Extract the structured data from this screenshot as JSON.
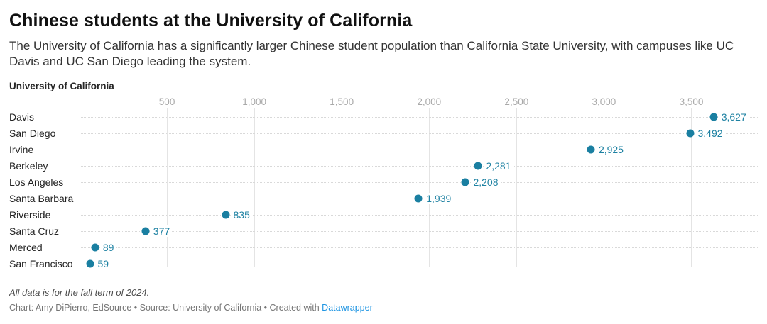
{
  "header": {
    "title": "Chinese students at the University of California",
    "subtitle": "The University of California has a significantly larger Chinese student population than California State University, with campuses like UC Davis and UC San Diego leading the system."
  },
  "chart_data": {
    "type": "scatter",
    "variant": "dot-plot",
    "group_label": "University of California",
    "categories": [
      "Davis",
      "San Diego",
      "Irvine",
      "Berkeley",
      "Los Angeles",
      "Santa Barbara",
      "Riverside",
      "Santa Cruz",
      "Merced",
      "San Francisco"
    ],
    "values": [
      3627,
      3492,
      2925,
      2281,
      2208,
      1939,
      835,
      377,
      89,
      59
    ],
    "value_labels": [
      "3,627",
      "3,492",
      "2,925",
      "2,281",
      "2,208",
      "1,939",
      "835",
      "377",
      "89",
      "59"
    ],
    "x_ticks": [
      500,
      1000,
      1500,
      2000,
      2500,
      3000,
      3500
    ],
    "x_tick_labels": [
      "500",
      "1,000",
      "1,500",
      "2,000",
      "2,500",
      "3,000",
      "3,500"
    ],
    "xlim": [
      0,
      3880
    ],
    "grid": true,
    "legend": "none",
    "dot_color": "#1a7fa1",
    "value_label_color": "#1d81a2"
  },
  "footer": {
    "note": "All data is for the fall term of 2024.",
    "credit_prefix": "Chart: Amy DiPierro, EdSource • Source: University of California • Created with ",
    "credit_link": "Datawrapper",
    "credit_link_color": "#2196e3"
  }
}
